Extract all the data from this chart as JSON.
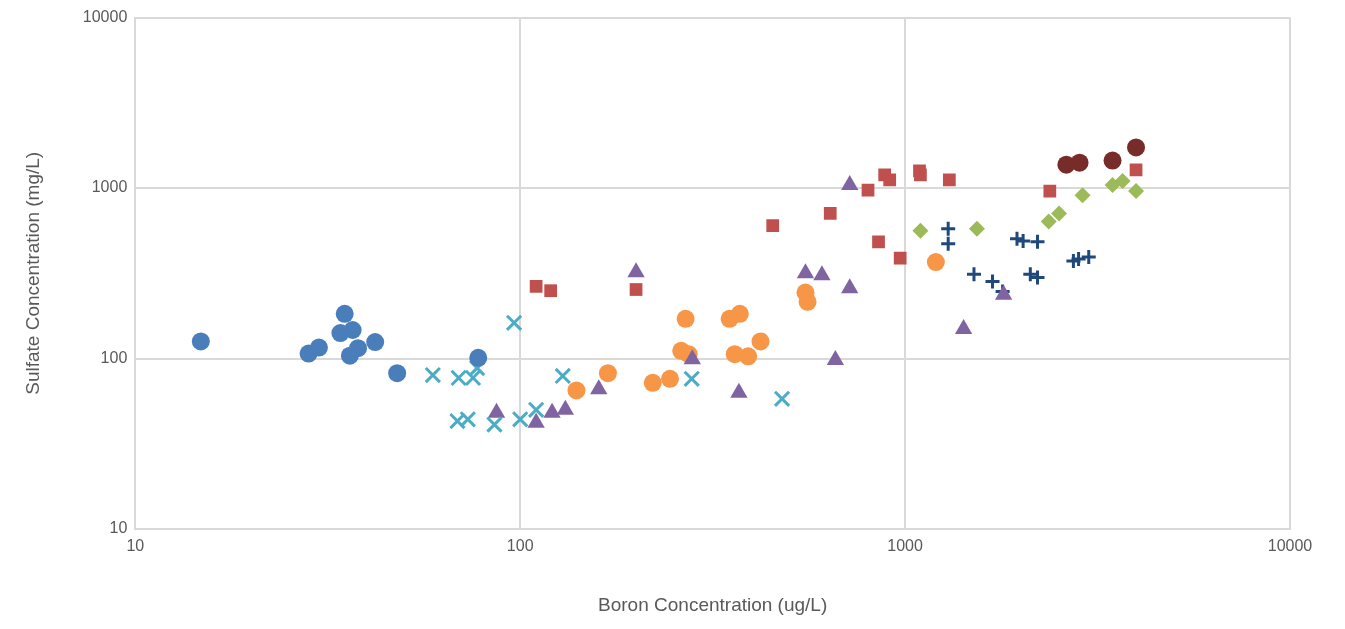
{
  "chart_data": {
    "type": "scatter",
    "xlabel": "Boron Concentration (ug/L)",
    "ylabel": "Sulfate Concentration (mg/L)",
    "log": "xy",
    "grid": true,
    "legend": false,
    "xlim": [
      10,
      10000
    ],
    "xticks": [
      10,
      100,
      1000,
      10000
    ],
    "ylim": [
      10,
      10000
    ],
    "yticks": [
      10,
      100,
      1000,
      10000
    ],
    "series": [
      {
        "color": "#4a7ebb",
        "marker": "circle",
        "x": [
          14.8,
          28.2,
          30,
          35,
          36.7,
          34.1,
          36.1,
          37.9,
          42,
          47.9,
          77.8
        ],
        "values": [
          126,
          107,
          116,
          183,
          147,
          141,
          104,
          115,
          125,
          82,
          101
        ]
      },
      {
        "color": "#4bacc6",
        "marker": "x",
        "x": [
          59.3,
          69.2,
          75.4,
          77.3,
          68.7,
          73.1,
          85.7,
          96.4,
          100,
          110,
          129,
          279,
          479
        ],
        "values": [
          80,
          77,
          77,
          88,
          43,
          44,
          41,
          162,
          44,
          50,
          79,
          76,
          58
        ]
      },
      {
        "color": "#8064a2",
        "marker": "triangle",
        "x": [
          86.8,
          110,
          121,
          131,
          160,
          200,
          280,
          370,
          551,
          608,
          659,
          718,
          718,
          1419,
          1803
        ],
        "values": [
          48,
          42,
          48,
          50,
          66,
          321,
          99,
          63,
          316,
          308,
          98,
          1042,
          258,
          149,
          237
        ]
      },
      {
        "color": "#f79646",
        "marker": "circle",
        "x": [
          140,
          169,
          221,
          245,
          262,
          274,
          269,
          350,
          372,
          361,
          391,
          421,
          551,
          558,
          1202
        ],
        "values": [
          65,
          82,
          72,
          76,
          111,
          106,
          171,
          171,
          183,
          106,
          103,
          126,
          244,
          215,
          368
        ]
      },
      {
        "color": "#c0504d",
        "marker": "square",
        "x": [
          110,
          120,
          200,
          453,
          639,
          801,
          885,
          912,
          1090,
          1096,
          1303,
          853,
          971,
          2377,
          3981
        ],
        "values": [
          265,
          250,
          254,
          603,
          710,
          973,
          1194,
          1116,
          1263,
          1194,
          1116,
          484,
          388,
          960,
          1280
        ]
      },
      {
        "color": "#1f497d",
        "marker": "cross",
        "x": [
          1294,
          1294,
          1510,
          1687,
          1792,
          1953,
          2026,
          2208,
          2115,
          2208,
          2737,
          2823,
          3000
        ],
        "values": [
          578,
          471,
          312,
          283,
          247,
          504,
          490,
          484,
          312,
          299,
          373,
          383,
          394
        ]
      },
      {
        "color": "#9bbb59",
        "marker": "diamond",
        "x": [
          1096,
          1537,
          2362,
          2512,
          2891,
          3459,
          3673,
          3981
        ],
        "values": [
          562,
          578,
          637,
          710,
          908,
          1042,
          1101,
          960
        ]
      },
      {
        "color": "#772c2a",
        "marker": "circle",
        "x": [
          2624,
          2840,
          3459,
          3981
        ],
        "values": [
          1371,
          1410,
          1449,
          1730
        ]
      }
    ]
  }
}
